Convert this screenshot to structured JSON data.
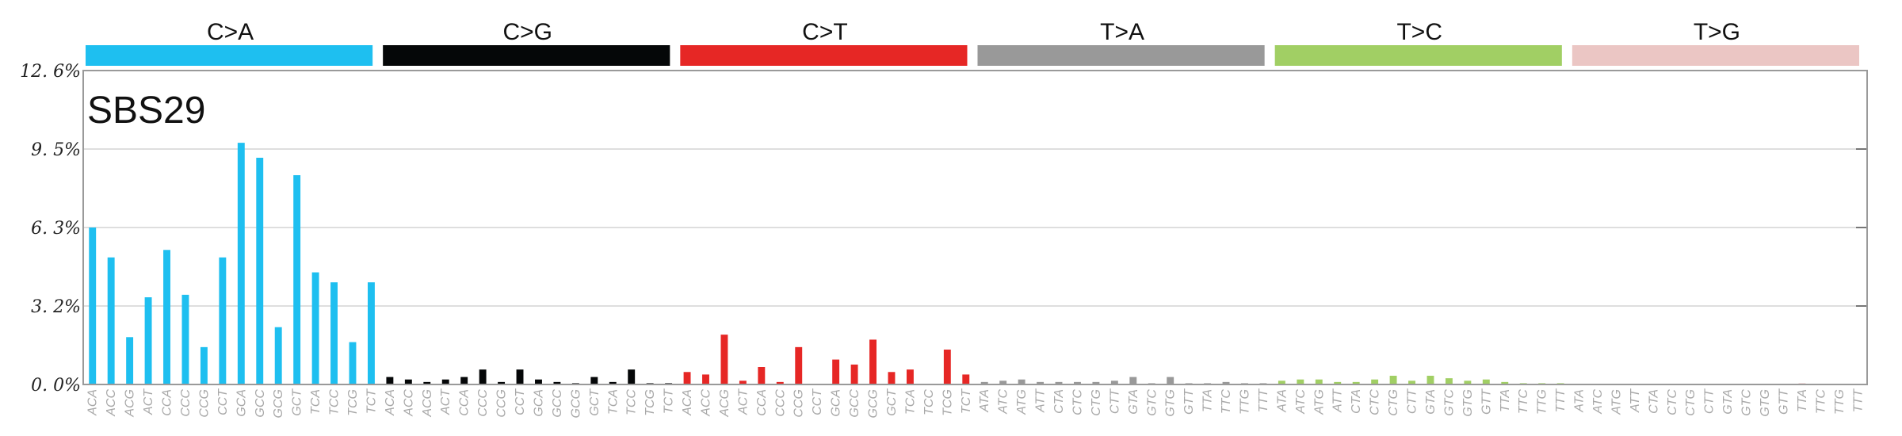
{
  "chart_data": {
    "type": "bar",
    "title": "SBS29",
    "yaxis": {
      "ylim": [
        0,
        12.6
      ],
      "tick_labels": [
        "0. 0%",
        "3. 2%",
        "6. 3%",
        "9. 5%",
        "12. 6%"
      ],
      "grid": true
    },
    "groups": [
      {
        "name": "C>A",
        "color": "#1ebff0",
        "contexts": [
          "ACA",
          "ACC",
          "ACG",
          "ACT",
          "CCA",
          "CCC",
          "CCG",
          "CCT",
          "GCA",
          "GCC",
          "GCG",
          "GCT",
          "TCA",
          "TCC",
          "TCG",
          "TCT"
        ],
        "values": [
          6.3,
          5.1,
          1.9,
          3.5,
          5.4,
          3.6,
          1.5,
          5.1,
          9.7,
          9.1,
          2.3,
          8.4,
          4.5,
          4.1,
          1.7,
          4.1
        ]
      },
      {
        "name": "C>G",
        "color": "#050708",
        "contexts": [
          "ACA",
          "ACC",
          "ACG",
          "ACT",
          "CCA",
          "CCC",
          "CCG",
          "CCT",
          "GCA",
          "GCC",
          "GCG",
          "GCT",
          "TCA",
          "TCC",
          "TCG",
          "TCT"
        ],
        "values": [
          0.3,
          0.2,
          0.1,
          0.2,
          0.3,
          0.6,
          0.1,
          0.6,
          0.2,
          0.1,
          0.05,
          0.3,
          0.1,
          0.6,
          0.05,
          0.05
        ]
      },
      {
        "name": "C>T",
        "color": "#e62725",
        "contexts": [
          "ACA",
          "ACC",
          "ACG",
          "ACT",
          "CCA",
          "CCC",
          "CCG",
          "CCT",
          "GCA",
          "GCC",
          "GCG",
          "GCT",
          "TCA",
          "TCC",
          "TCG",
          "TCT"
        ],
        "values": [
          0.5,
          0.4,
          2.0,
          0.15,
          0.7,
          0.1,
          1.5,
          0.0,
          1.0,
          0.8,
          1.8,
          0.5,
          0.6,
          0.0,
          1.4,
          0.4
        ]
      },
      {
        "name": "T>A",
        "color": "#999999",
        "contexts": [
          "ATA",
          "ATC",
          "ATG",
          "ATT",
          "CTA",
          "CTC",
          "CTG",
          "CTT",
          "GTA",
          "GTC",
          "GTG",
          "GTT",
          "TTA",
          "TTC",
          "TTG",
          "TTT"
        ],
        "values": [
          0.1,
          0.15,
          0.2,
          0.1,
          0.1,
          0.1,
          0.1,
          0.15,
          0.3,
          0.05,
          0.3,
          0.05,
          0.05,
          0.1,
          0.05,
          0.05
        ]
      },
      {
        "name": "T>C",
        "color": "#a1cf64",
        "contexts": [
          "ATA",
          "ATC",
          "ATG",
          "ATT",
          "CTA",
          "CTC",
          "CTG",
          "CTT",
          "GTA",
          "GTC",
          "GTG",
          "GTT",
          "TTA",
          "TTC",
          "TTG",
          "TTT"
        ],
        "values": [
          0.15,
          0.2,
          0.2,
          0.1,
          0.1,
          0.2,
          0.35,
          0.15,
          0.35,
          0.25,
          0.15,
          0.2,
          0.1,
          0.05,
          0.05,
          0.05
        ]
      },
      {
        "name": "T>G",
        "color": "#ebc6c4",
        "contexts": [
          "ATA",
          "ATC",
          "ATG",
          "ATT",
          "CTA",
          "CTC",
          "CTG",
          "CTT",
          "GTA",
          "GTC",
          "GTG",
          "GTT",
          "TTA",
          "TTC",
          "TTG",
          "TTT"
        ],
        "values": [
          0.03,
          0.02,
          0.02,
          0.02,
          0.02,
          0.02,
          0.02,
          0.02,
          0.02,
          0.02,
          0.02,
          0.02,
          0.05,
          0.02,
          0.02,
          0.02
        ]
      }
    ]
  }
}
